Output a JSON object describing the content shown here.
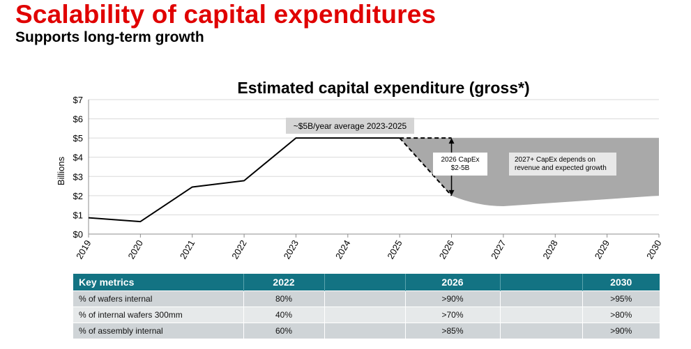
{
  "header": {
    "title": "Scalability of capital expenditures",
    "subtitle": "Supports long-term growth"
  },
  "chart_data": {
    "type": "line",
    "title": "Estimated capital expenditure (gross*)",
    "ylabel": "Billions",
    "xlabel": "",
    "xlim": [
      2019,
      2030
    ],
    "ylim": [
      0,
      7
    ],
    "x_ticks": [
      "2019",
      "2020",
      "2021",
      "2022",
      "2023",
      "2024",
      "2025",
      "2026",
      "2027",
      "2028",
      "2029",
      "2030"
    ],
    "y_ticks": [
      "$0",
      "$1",
      "$2",
      "$3",
      "$4",
      "$5",
      "$6",
      "$7"
    ],
    "grid": true,
    "series": [
      {
        "name": "",
        "x": [
          2019,
          2020,
          2021,
          2022,
          2023,
          2025
        ],
        "values": [
          0.85,
          0.65,
          2.45,
          2.78,
          5.0,
          5.0
        ]
      }
    ],
    "projection": {
      "upper_dashed": {
        "x": [
          2025,
          2026
        ],
        "values": [
          5.0,
          5.0
        ]
      },
      "lower_dashed": {
        "x": [
          2025,
          2026
        ],
        "values": [
          5.0,
          2.0
        ]
      },
      "band_upper": {
        "x": [
          2026,
          2030
        ],
        "values": [
          5.0,
          5.0
        ]
      },
      "band_lower": {
        "x": [
          2026,
          2026.5,
          2027,
          2030
        ],
        "values": [
          2.0,
          1.45,
          1.45,
          2.0
        ]
      },
      "band_color": "#a9a9a9"
    },
    "annotations": [
      {
        "id": "avg",
        "text": "~$5B/year average 2023-2025"
      },
      {
        "id": "capex2026",
        "lines": [
          "2026 CapEx",
          "$2-5B"
        ]
      },
      {
        "id": "capex2027",
        "lines": [
          "2027+ CapEx depends on",
          "revenue and expected growth"
        ]
      }
    ]
  },
  "table": {
    "headers": [
      "Key metrics",
      "2022",
      "",
      "2026",
      "",
      "2030"
    ],
    "rows": [
      [
        "% of wafers internal",
        "80%",
        "",
        ">90%",
        "",
        ">95%"
      ],
      [
        "% of internal wafers 300mm",
        "40%",
        "",
        ">70%",
        "",
        ">80%"
      ],
      [
        "% of assembly internal",
        "60%",
        "",
        ">85%",
        "",
        ">90%"
      ]
    ]
  },
  "colors": {
    "title": "#e00000",
    "table_header": "#137383",
    "row_odd": "#cfd4d7",
    "row_even": "#e6e9ea"
  }
}
